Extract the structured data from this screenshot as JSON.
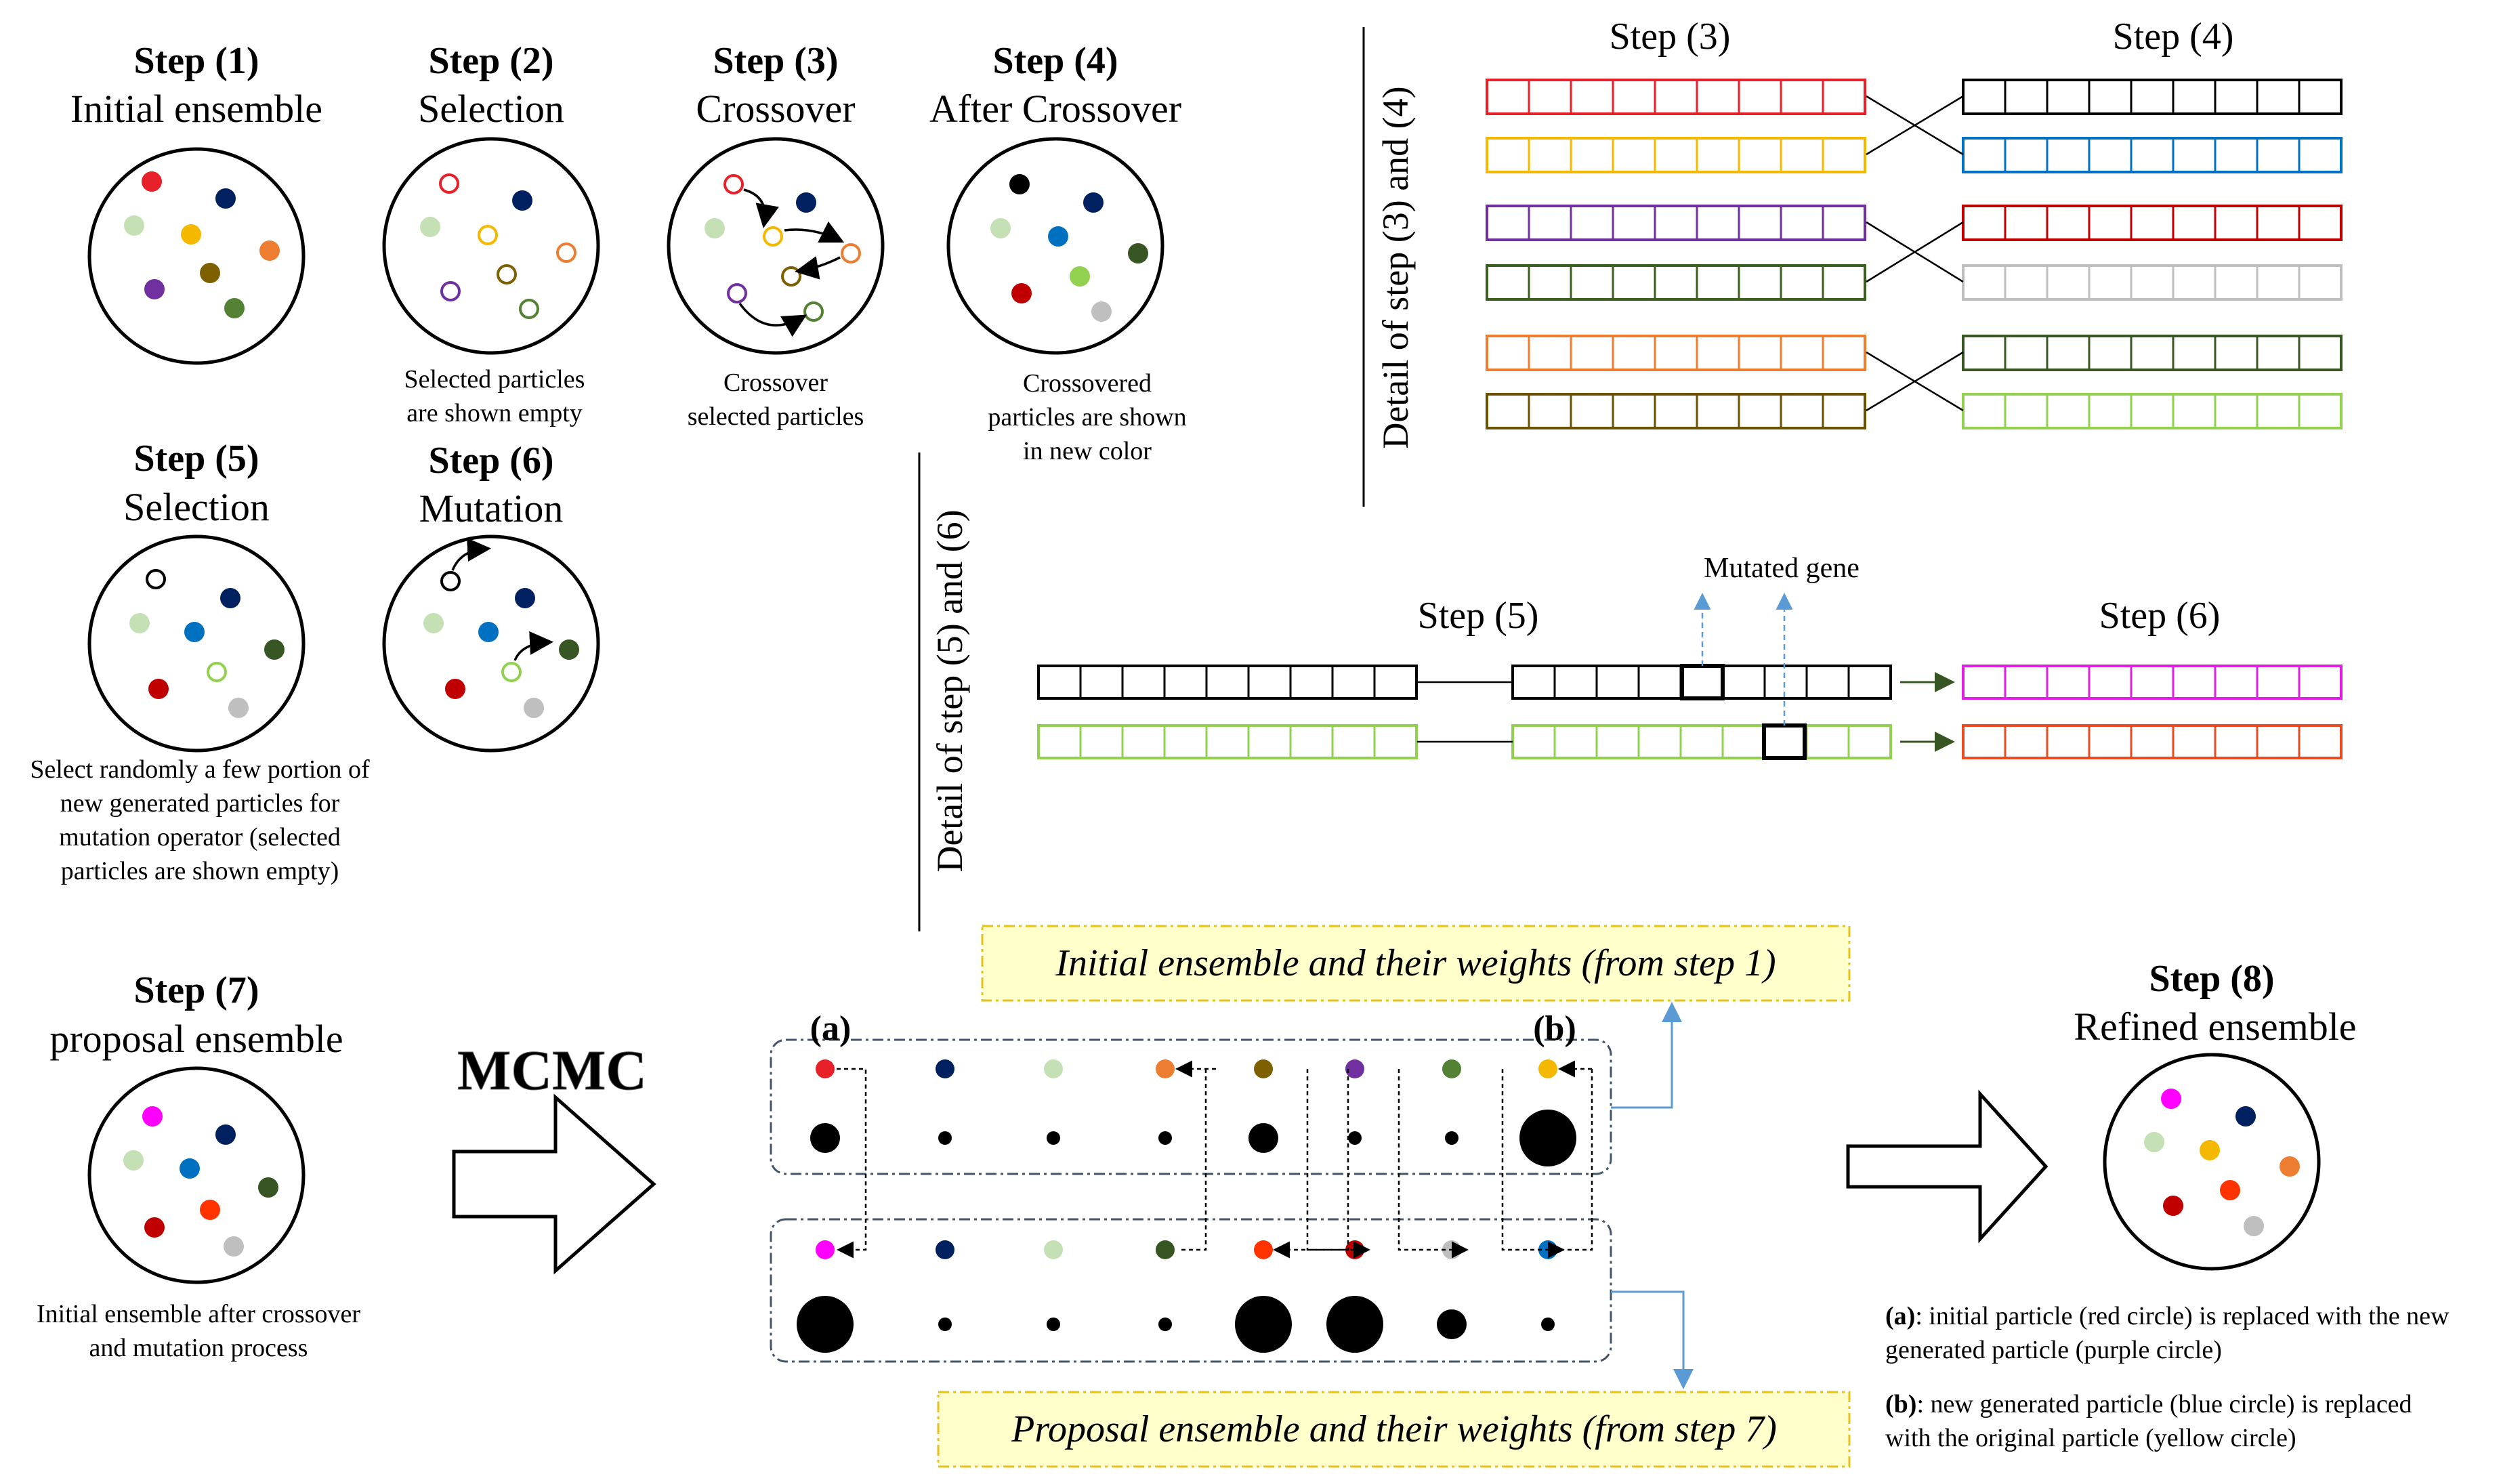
{
  "steps": {
    "s1": {
      "label": "Step (1)",
      "name": "Initial ensemble"
    },
    "s2": {
      "label": "Step (2)",
      "name": "Selection",
      "caption": [
        "Selected particles",
        "are shown empty"
      ]
    },
    "s3": {
      "label": "Step (3)",
      "name": "Crossover",
      "caption": [
        "Crossover",
        "selected particles"
      ]
    },
    "s4": {
      "label": "Step (4)",
      "name": "After Crossover",
      "caption": [
        "Crossovered",
        "particles are shown",
        "in new color"
      ]
    },
    "s5": {
      "label": "Step (5)",
      "name": "Selection",
      "caption": [
        "Select randomly a few portion of",
        "new generated particles for",
        "mutation operator (selected",
        "particles are shown empty)"
      ]
    },
    "s6": {
      "label": "Step (6)",
      "name": "Mutation"
    },
    "s7": {
      "label": "Step (7)",
      "name": "proposal ensemble",
      "caption": [
        "Initial ensemble after crossover",
        "and mutation process"
      ]
    },
    "s8": {
      "label": "Step (8)",
      "name": "Refined ensemble"
    }
  },
  "detail_34": {
    "side_label": "Detail of step (3) and (4)",
    "left_header": "Step (3)",
    "right_header": "Step (4)",
    "left_colors": [
      "#e8202a",
      "#f5b800",
      "#7030a0",
      "#3a5f1e",
      "#ed7d31",
      "#6b5200"
    ],
    "right_colors": [
      "#000000",
      "#0070c0",
      "#c00000",
      "#bfbfbf",
      "#385723",
      "#92d050"
    ]
  },
  "detail_56": {
    "side_label": "Detail of step (5) and (6)",
    "mid_header": "Step (5)",
    "right_header": "Step (6)",
    "mutated_label": "Mutated gene",
    "row_colors": [
      "#000000",
      "#92d050"
    ],
    "out_colors": [
      "#e020e0",
      "#e84c22"
    ]
  },
  "mcmc": {
    "label": "MCMC",
    "top_box": "Initial ensemble and their weights (from step 1)",
    "bottom_box": "Proposal ensemble and their weights (from step 7)",
    "marker_a": "(a)",
    "marker_b": "(b)",
    "initial_particles": [
      "#e8202a",
      "#002060",
      "#c5e0b4",
      "#ed7d31",
      "#7f6000",
      "#7030a0",
      "#548235",
      "#f5b800"
    ],
    "initial_weights": [
      "medium",
      "small",
      "small",
      "small",
      "medium",
      "small",
      "small",
      "large"
    ],
    "proposal_particles": [
      "#ff00ff",
      "#002060",
      "#c5e0b4",
      "#375623",
      "#ff3300",
      "#c00000",
      "#bfbfbf",
      "#0070c0"
    ],
    "proposal_weights": [
      "large",
      "small",
      "small",
      "small",
      "large",
      "large",
      "medium",
      "small"
    ]
  },
  "notes": {
    "a_key": "(a)",
    "a_text_1": ": initial particle (red circle) is replaced with the new",
    "a_text_2": "generated particle (purple circle)",
    "b_key": "(b)",
    "b_text_1": ": new generated particle (blue circle) is replaced",
    "b_text_2": "with the original particle (yellow circle)"
  }
}
